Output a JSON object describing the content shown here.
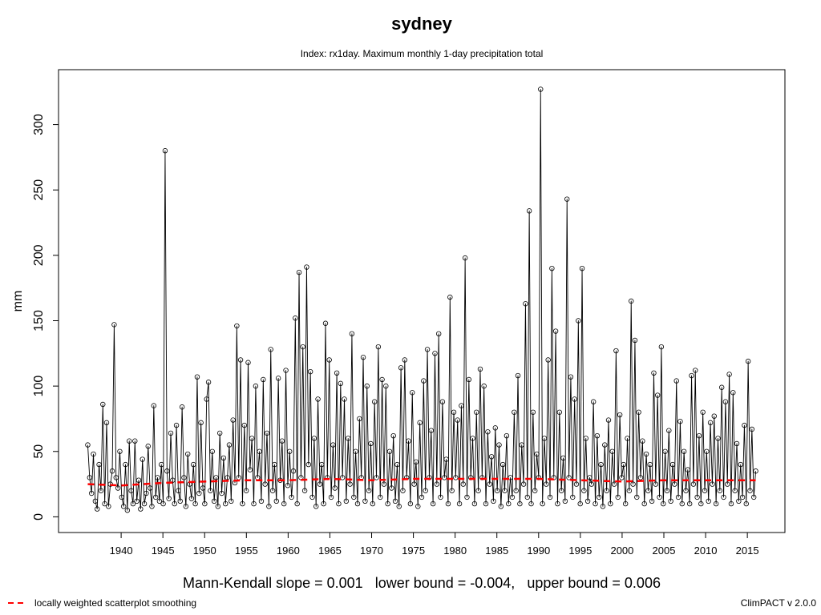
{
  "chart_data": {
    "type": "line",
    "title": "sydney",
    "subtitle": "Index: rx1day. Maximum monthly 1-day precipitation total",
    "xlabel": "",
    "ylabel": "mm",
    "xlim": [
      1932.5,
      2019.5
    ],
    "ylim": [
      -12,
      342
    ],
    "x_ticks": [
      1940,
      1945,
      1950,
      1955,
      1960,
      1965,
      1970,
      1975,
      1980,
      1985,
      1990,
      1995,
      2000,
      2005,
      2010,
      2015
    ],
    "y_ticks": [
      0,
      50,
      100,
      150,
      200,
      250,
      300
    ],
    "grid": false,
    "x_range": [
      1936.0,
      2016.0
    ],
    "series": [
      {
        "style": "line-with-open-circles",
        "color": "#000000",
        "values": [
          55,
          30,
          18,
          48,
          12,
          6,
          40,
          20,
          86,
          10,
          72,
          8,
          25,
          35,
          147,
          30,
          22,
          50,
          15,
          8,
          40,
          5,
          58,
          20,
          10,
          58,
          12,
          28,
          6,
          44,
          10,
          18,
          54,
          22,
          8,
          85,
          15,
          30,
          12,
          40,
          10,
          280,
          35,
          14,
          64,
          28,
          10,
          70,
          20,
          12,
          84,
          30,
          8,
          48,
          25,
          14,
          40,
          10,
          107,
          18,
          72,
          22,
          10,
          90,
          103,
          20,
          50,
          12,
          30,
          8,
          64,
          18,
          45,
          10,
          30,
          55,
          12,
          74,
          26,
          146,
          30,
          120,
          10,
          70,
          20,
          118,
          36,
          60,
          10,
          100,
          30,
          50,
          12,
          105,
          25,
          64,
          8,
          128,
          20,
          40,
          12,
          106,
          28,
          58,
          10,
          112,
          24,
          50,
          15,
          35,
          152,
          10,
          187,
          30,
          130,
          20,
          191,
          40,
          111,
          15,
          60,
          8,
          90,
          25,
          40,
          10,
          148,
          30,
          120,
          15,
          55,
          22,
          110,
          10,
          102,
          30,
          90,
          12,
          60,
          25,
          140,
          15,
          50,
          10,
          75,
          30,
          122,
          12,
          100,
          20,
          56,
          10,
          88,
          30,
          130,
          15,
          105,
          25,
          100,
          10,
          50,
          22,
          62,
          12,
          40,
          8,
          114,
          20,
          120,
          30,
          58,
          10,
          95,
          25,
          42,
          8,
          72,
          15,
          104,
          20,
          128,
          30,
          66,
          10,
          125,
          25,
          140,
          15,
          88,
          30,
          44,
          10,
          168,
          20,
          80,
          30,
          74,
          10,
          85,
          25,
          198,
          15,
          105,
          30,
          60,
          10,
          80,
          20,
          113,
          30,
          100,
          10,
          65,
          25,
          46,
          12,
          68,
          20,
          55,
          8,
          40,
          20,
          62,
          10,
          30,
          15,
          80,
          20,
          108,
          10,
          55,
          25,
          163,
          15,
          234,
          10,
          80,
          20,
          48,
          30,
          327,
          10,
          60,
          25,
          120,
          15,
          190,
          30,
          142,
          10,
          80,
          20,
          45,
          12,
          243,
          30,
          107,
          15,
          90,
          25,
          150,
          10,
          190,
          20,
          60,
          12,
          30,
          25,
          88,
          10,
          62,
          15,
          40,
          8,
          55,
          20,
          74,
          10,
          50,
          25,
          127,
          15,
          78,
          30,
          40,
          10,
          60,
          20,
          165,
          25,
          135,
          15,
          80,
          30,
          58,
          10,
          48,
          20,
          40,
          12,
          110,
          25,
          93,
          15,
          130,
          10,
          50,
          20,
          66,
          12,
          40,
          25,
          104,
          15,
          73,
          10,
          50,
          20,
          36,
          10,
          108,
          25,
          112,
          15,
          62,
          10,
          80,
          20,
          50,
          12,
          72,
          25,
          77,
          10,
          60,
          20,
          99,
          15,
          88,
          25,
          109,
          10,
          95,
          20,
          56,
          12,
          40,
          15,
          70,
          10,
          119,
          20,
          67,
          15,
          35
        ]
      }
    ],
    "smoothing": {
      "name": "locally weighted scatterplot smoothing",
      "color": "#ff0000",
      "style": "dashed",
      "values": [
        [
          1936,
          25
        ],
        [
          1940,
          24
        ],
        [
          1945,
          26
        ],
        [
          1950,
          27
        ],
        [
          1955,
          28
        ],
        [
          1960,
          28
        ],
        [
          1965,
          29
        ],
        [
          1970,
          28
        ],
        [
          1975,
          29
        ],
        [
          1980,
          29
        ],
        [
          1985,
          29
        ],
        [
          1990,
          29
        ],
        [
          1995,
          28
        ],
        [
          2000,
          27
        ],
        [
          2005,
          28
        ],
        [
          2010,
          28
        ],
        [
          2016,
          28
        ]
      ]
    },
    "annotations": {
      "mann_kendall": "Mann-Kendall slope = 0.001   lower bound = -0.004,   upper bound = 0.006",
      "legend_label": "locally weighted scatterplot smoothing",
      "credit": "ClimPACT v 2.0.0"
    }
  }
}
